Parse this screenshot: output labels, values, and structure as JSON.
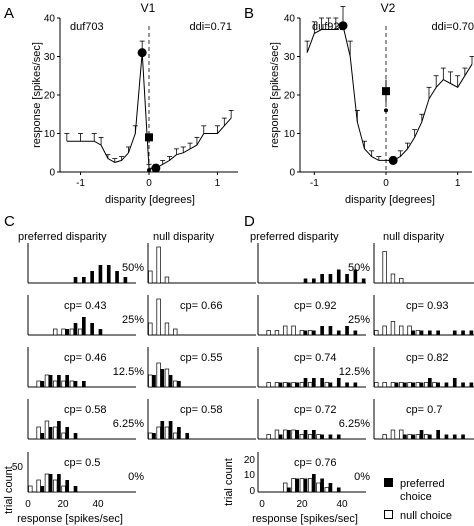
{
  "panels": {
    "A": "A",
    "B": "B",
    "C": "C",
    "D": "D"
  },
  "top_charts": [
    {
      "id": "A",
      "title": "V1",
      "cell": "duf703",
      "ddi": "ddi=0.71",
      "ylabel": "response [spikes/sec]",
      "xlabel": "disparity [degrees]",
      "xlim": [
        -1.3,
        1.3
      ],
      "ylim": [
        0,
        40
      ],
      "xticks": [
        -1,
        0,
        1
      ],
      "yticks": [
        0,
        10,
        20,
        30,
        40
      ],
      "series": {
        "x": [
          -1.2,
          -1.0,
          -0.8,
          -0.7,
          -0.6,
          -0.5,
          -0.4,
          -0.3,
          -0.2,
          -0.1,
          0.0,
          0.1,
          0.2,
          0.3,
          0.4,
          0.5,
          0.6,
          0.7,
          0.8,
          1.0,
          1.1,
          1.2
        ],
        "y": [
          8,
          8,
          8,
          7,
          3.5,
          2.5,
          3,
          5,
          10,
          31,
          1,
          1,
          2,
          3,
          4.5,
          5,
          6,
          7,
          10,
          10,
          12,
          14
        ],
        "err": [
          2,
          2,
          2,
          2,
          1,
          1,
          1,
          1.5,
          2,
          3,
          1,
          1,
          1,
          1,
          1.5,
          1.5,
          1.5,
          2,
          2,
          2,
          2,
          2
        ]
      },
      "big_dots": [
        {
          "x": -0.1,
          "y": 31
        },
        {
          "x": 0.1,
          "y": 1
        }
      ],
      "square": {
        "x": 0.0,
        "y": 9,
        "err": 1.5
      },
      "small_dot": {
        "x": 0.0,
        "y": 0.5
      }
    },
    {
      "id": "B",
      "title": "V2",
      "cell": "duf922",
      "ddi": "ddi=0.70",
      "ylabel": "response [spikes/sec]",
      "xlabel": "disparity [degrees]",
      "xlim": [
        -1.2,
        1.2
      ],
      "ylim": [
        0,
        40
      ],
      "xticks": [
        -1,
        0,
        1
      ],
      "yticks": [
        0,
        10,
        20,
        30,
        40
      ],
      "series": {
        "x": [
          -1.1,
          -1.0,
          -0.9,
          -0.8,
          -0.7,
          -0.6,
          -0.5,
          -0.4,
          -0.3,
          -0.2,
          -0.1,
          0.1,
          0.2,
          0.3,
          0.4,
          0.5,
          0.6,
          0.7,
          0.8,
          0.9,
          1.0,
          1.1,
          1.2
        ],
        "y": [
          31,
          36,
          37,
          37,
          37,
          38,
          30,
          13,
          6,
          4,
          3,
          3,
          4,
          6,
          9,
          13,
          19,
          22,
          24,
          23,
          22,
          25,
          28
        ],
        "err": [
          3,
          3,
          3,
          3,
          3,
          5,
          4,
          3,
          2,
          1.5,
          1,
          1,
          1.5,
          1.5,
          2,
          2,
          3,
          3,
          3,
          3,
          3,
          2,
          2
        ]
      },
      "big_dots": [
        {
          "x": -0.6,
          "y": 38
        },
        {
          "x": 0.1,
          "y": 3
        }
      ],
      "square": {
        "x": 0.0,
        "y": 21,
        "err": 3
      },
      "small_dot": {
        "x": 0.0,
        "y": 16
      }
    }
  ],
  "hist_columns": [
    {
      "id": "C",
      "col_titles": [
        "preferred disparity",
        "null disparity"
      ],
      "ytick_label": "50",
      "rows": [
        {
          "pct": "50%",
          "left_cp": "",
          "right_cp": "",
          "left": {
            "pref": [
              0,
              0,
              0,
              0,
              0,
              1,
              1,
              2,
              3,
              3,
              2,
              1,
              0
            ],
            "null": [
              0,
              0,
              0,
              0,
              0,
              0,
              0,
              0,
              0,
              0,
              0,
              0,
              0
            ]
          },
          "right": {
            "pref": [
              0,
              0,
              0,
              0,
              0,
              0,
              0,
              0,
              0,
              0,
              0,
              0,
              0
            ],
            "null": [
              2,
              6,
              1,
              0,
              0,
              0,
              0,
              0,
              0,
              0,
              0,
              0,
              0
            ]
          }
        },
        {
          "pct": "25%",
          "left_cp": "cp= 0.43",
          "right_cp": "cp= 0.66",
          "left": {
            "pref": [
              0,
              0,
              0,
              0,
              1,
              2,
              3,
              2,
              1,
              0,
              0,
              0,
              0
            ],
            "null": [
              0,
              0,
              0,
              1,
              1,
              1,
              1,
              0,
              0,
              0,
              0,
              0,
              0
            ]
          },
          "right": {
            "pref": [
              0,
              0,
              0,
              0,
              0,
              0,
              0,
              0,
              0,
              0,
              0,
              0,
              0
            ],
            "null": [
              2,
              6,
              2,
              1,
              0,
              0,
              0,
              0,
              0,
              0,
              0,
              0,
              0
            ]
          }
        },
        {
          "pct": "12.5%",
          "left_cp": "cp= 0.46",
          "right_cp": "cp= 0.55",
          "left": {
            "pref": [
              0,
              1,
              2,
              2,
              2,
              1,
              1,
              0,
              0,
              0,
              0,
              0,
              0
            ],
            "null": [
              0,
              1,
              2,
              1,
              1,
              1,
              0,
              0,
              0,
              0,
              0,
              0,
              0
            ]
          },
          "right": {
            "pref": [
              2,
              3,
              2,
              1,
              0,
              0,
              0,
              0,
              0,
              0,
              0,
              0,
              0
            ],
            "null": [
              2,
              4,
              3,
              1,
              0,
              0,
              0,
              0,
              0,
              0,
              0,
              0,
              0
            ]
          }
        },
        {
          "pct": "6.25%",
          "left_cp": "cp= 0.58",
          "right_cp": "cp= 0.58",
          "left": {
            "pref": [
              0,
              1,
              2,
              3,
              2,
              1,
              0,
              0,
              0,
              0,
              0,
              0,
              0
            ],
            "null": [
              0,
              2,
              3,
              2,
              1,
              0,
              0,
              0,
              0,
              0,
              0,
              0,
              0
            ]
          },
          "right": {
            "pref": [
              1,
              3,
              3,
              2,
              1,
              0,
              0,
              0,
              0,
              0,
              0,
              0,
              0
            ],
            "null": [
              1,
              2,
              2,
              1,
              0,
              0,
              0,
              0,
              0,
              0,
              0,
              0,
              0
            ]
          }
        },
        {
          "pct": "0%",
          "left_cp": "cp= 0.5",
          "right_cp": null,
          "left": {
            "pref": [
              0,
              1,
              3,
              3,
              2,
              1,
              0,
              0,
              0,
              0,
              0,
              0,
              0
            ],
            "null": [
              1,
              2,
              3,
              2,
              1,
              0,
              0,
              0,
              0,
              0,
              0,
              0,
              0
            ]
          },
          "right": null
        }
      ],
      "xticks": [
        "0",
        "20",
        "40"
      ],
      "xlabel": "response [spikes/sec]",
      "ylabel": "trial count"
    },
    {
      "id": "D",
      "col_titles": [
        "preferred disparity",
        "null disparity"
      ],
      "ytick_labels": [
        "20",
        "10",
        "0"
      ],
      "rows": [
        {
          "pct": "50%",
          "left_cp": "",
          "right_cp": "",
          "left": {
            "pref": [
              0,
              0,
              0,
              0,
              0,
              1,
              1,
              2,
              2,
              3,
              2,
              3,
              1
            ],
            "null": [
              0,
              0,
              0,
              0,
              0,
              0,
              0,
              0,
              0,
              0,
              0,
              0,
              0
            ]
          },
          "right": {
            "pref": [
              0,
              0,
              0,
              0,
              0,
              0,
              0,
              0,
              0,
              0,
              0,
              0,
              0
            ],
            "null": [
              0,
              7,
              2,
              1,
              0,
              0,
              0,
              0,
              0,
              0,
              0,
              0,
              0
            ]
          }
        },
        {
          "pct": "25%",
          "left_cp": "cp= 0.92",
          "right_cp": "cp= 0.93",
          "left": {
            "pref": [
              0,
              0,
              0,
              0,
              0,
              1,
              1,
              2,
              2,
              1,
              2,
              1,
              0
            ],
            "null": [
              0,
              1,
              1,
              2,
              2,
              1,
              1,
              0,
              0,
              0,
              0,
              0,
              0
            ]
          },
          "right": {
            "pref": [
              0,
              0,
              0,
              0,
              1,
              1,
              1,
              1,
              0,
              1,
              1,
              1,
              1
            ],
            "null": [
              1,
              2,
              3,
              2,
              2,
              1,
              0,
              0,
              0,
              0,
              0,
              0,
              0
            ]
          }
        },
        {
          "pct": "12.5%",
          "left_cp": "cp= 0.74",
          "right_cp": "cp= 0.82",
          "left": {
            "pref": [
              0,
              0,
              1,
              1,
              1,
              2,
              2,
              2,
              1,
              2,
              1,
              1,
              0
            ],
            "null": [
              0,
              1,
              1,
              1,
              1,
              1,
              1,
              0,
              1,
              0,
              0,
              0,
              0
            ]
          },
          "right": {
            "pref": [
              0,
              0,
              1,
              1,
              1,
              1,
              2,
              1,
              1,
              2,
              1,
              1,
              1
            ],
            "null": [
              1,
              1,
              1,
              1,
              1,
              1,
              1,
              1,
              0,
              0,
              0,
              0,
              0
            ]
          }
        },
        {
          "pct": "6.25%",
          "left_cp": "cp= 0.72",
          "right_cp": "cp= 0.7",
          "left": {
            "pref": [
              0,
              0,
              1,
              2,
              2,
              2,
              2,
              1,
              1,
              1,
              0,
              0,
              0
            ],
            "null": [
              0,
              1,
              2,
              2,
              2,
              1,
              1,
              1,
              0,
              0,
              0,
              0,
              0
            ]
          },
          "right": {
            "pref": [
              0,
              0,
              0,
              1,
              1,
              2,
              1,
              2,
              1,
              1,
              1,
              0,
              0
            ],
            "null": [
              0,
              1,
              2,
              2,
              1,
              1,
              1,
              0,
              0,
              0,
              0,
              0,
              0
            ]
          }
        },
        {
          "pct": "0%",
          "left_cp": "cp= 0.76",
          "right_cp": null,
          "left": {
            "pref": [
              0,
              0,
              0,
              1,
              3,
              3,
              4,
              3,
              2,
              1,
              0,
              0,
              0
            ],
            "null": [
              0,
              0,
              0,
              2,
              3,
              3,
              3,
              2,
              1,
              0,
              0,
              0,
              0
            ]
          },
          "right": null
        }
      ],
      "xticks": [
        "0",
        "20",
        "40"
      ],
      "xlabel": "response [spikes/sec]",
      "ylabel": "trial count"
    }
  ],
  "legend": {
    "preferred": "preferred choice",
    "null": "null choice",
    "preferred_line1": "preferred",
    "preferred_line2": "choice"
  },
  "colors": {
    "filled": "#000000",
    "open": "#ffffff",
    "line": "#000000"
  }
}
